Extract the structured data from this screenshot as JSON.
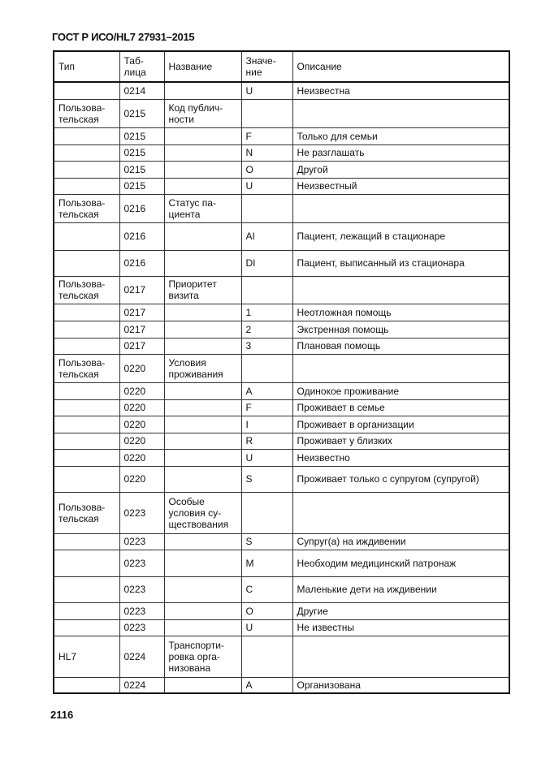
{
  "header": "ГОСТ Р ИСО/HL7 27931–2015",
  "page_number": "2116",
  "columns": [
    "Тип",
    "Таб-\nлица",
    "Название",
    "Значе-\nние",
    "Описание"
  ],
  "rows": [
    [
      "",
      "0214",
      "",
      "U",
      "Неизвестна"
    ],
    [
      "Пользова-\nтельская",
      "0215",
      "Код публич-\nности",
      "",
      ""
    ],
    [
      "",
      "0215",
      "",
      "F",
      "Только для семьи"
    ],
    [
      "",
      "0215",
      "",
      "N",
      "Не разглашать"
    ],
    [
      "",
      "0215",
      "",
      "O",
      "Другой"
    ],
    [
      "",
      "0215",
      "",
      "U",
      "Неизвестный"
    ],
    [
      "Пользова-\nтельская",
      "0216",
      "Статус па-\nциента",
      "",
      ""
    ],
    [
      "",
      "0216",
      "",
      "AI",
      "Пациент, лежащий в стационаре"
    ],
    [
      "",
      "0216",
      "",
      "DI",
      "Пациент, выписанный из стационара"
    ],
    [
      "Пользова-\nтельская",
      "0217",
      "Приоритет\nвизита",
      "",
      ""
    ],
    [
      "",
      "0217",
      "",
      "1",
      "Неотложная помощь"
    ],
    [
      "",
      "0217",
      "",
      "2",
      "Экстренная помощь"
    ],
    [
      "",
      "0217",
      "",
      "3",
      "Плановая помощь"
    ],
    [
      "Пользова-\nтельская",
      "0220",
      "Условия\nпроживания",
      "",
      ""
    ],
    [
      "",
      "0220",
      "",
      "A",
      "Одинокое проживание"
    ],
    [
      "",
      "0220",
      "",
      "F",
      "Проживает в семье"
    ],
    [
      "",
      "0220",
      "",
      "I",
      "Проживает в организации"
    ],
    [
      "",
      "0220",
      "",
      "R",
      "Проживает у близких"
    ],
    [
      "",
      "0220",
      "",
      "U",
      "Неизвестно"
    ],
    [
      "",
      "0220",
      "",
      "S",
      "Проживает только с супругом (супругой)"
    ],
    [
      "Пользова-\nтельская",
      "0223",
      "Особые\nусловия су-\nществования",
      "",
      ""
    ],
    [
      "",
      "0223",
      "",
      "S",
      "Супруг(а) на иждивении"
    ],
    [
      "",
      "0223",
      "",
      "M",
      "Необходим медицинский патронаж"
    ],
    [
      "",
      "0223",
      "",
      "C",
      "Маленькие дети на иждивении"
    ],
    [
      "",
      "0223",
      "",
      "O",
      "Другие"
    ],
    [
      "",
      "0223",
      "",
      "U",
      "Не известны"
    ],
    [
      "HL7",
      "0224",
      "Транспорти-\nровка орга-\nнизована",
      "",
      ""
    ],
    [
      "",
      "0224",
      "",
      "A",
      "Организована"
    ]
  ]
}
